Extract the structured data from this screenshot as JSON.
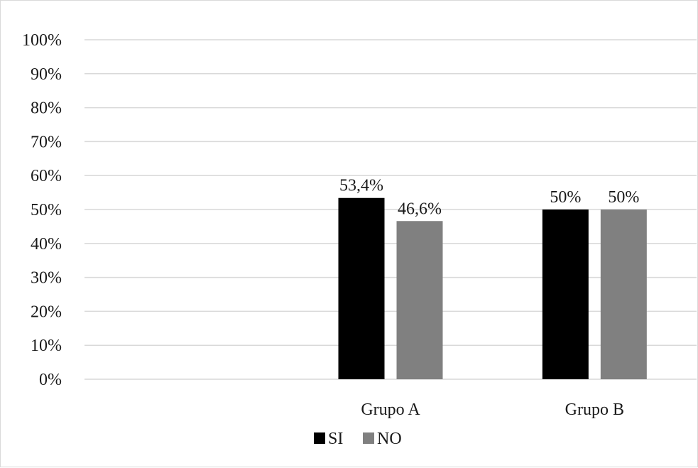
{
  "chart_data": {
    "type": "bar",
    "categories": [
      "",
      "Grupo A",
      "Grupo B"
    ],
    "series": [
      {
        "name": "SI",
        "values": [
          null,
          53.4,
          50
        ],
        "labels": [
          "",
          "53,4%",
          "50%"
        ],
        "color": "#000000"
      },
      {
        "name": "NO",
        "values": [
          null,
          46.6,
          50
        ],
        "labels": [
          "",
          "46,6%",
          "50%"
        ],
        "color": "#808080"
      }
    ],
    "y_ticks": [
      "0%",
      "10%",
      "20%",
      "30%",
      "40%",
      "50%",
      "60%",
      "70%",
      "80%",
      "90%",
      "100%"
    ],
    "ylim": [
      0,
      100
    ],
    "y_unit": "percent",
    "title": "",
    "xlabel": "",
    "ylabel": "",
    "grid": true,
    "gridline_color": "#d9d9d9",
    "legend": {
      "placement": "bottom-center",
      "items": [
        "SI",
        "NO"
      ]
    }
  }
}
